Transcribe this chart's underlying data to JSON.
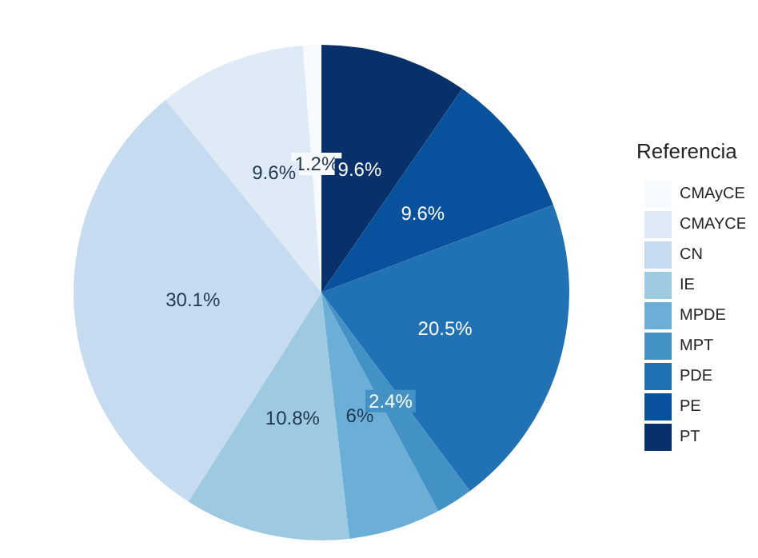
{
  "chart_data": {
    "type": "pie",
    "legend_title": "Referencia",
    "legend": "right",
    "categories": [
      "CMAyCE",
      "CMAYCE",
      "CN",
      "IE",
      "MPDE",
      "MPT",
      "PDE",
      "PE",
      "PT"
    ],
    "values": [
      1.2,
      9.6,
      30.1,
      10.8,
      6,
      2.4,
      20.5,
      9.6,
      9.6
    ],
    "value_labels": [
      "1.2%",
      "9.6%",
      "30.1%",
      "10.8%",
      "6%",
      "2.4%",
      "20.5%",
      "9.6%",
      "9.6%"
    ],
    "colors": [
      "#f7fbff",
      "#deebf7",
      "#c6dbef",
      "#9ecae1",
      "#6baed6",
      "#4292c6",
      "#2171b5",
      "#08519c",
      "#08306b"
    ]
  }
}
